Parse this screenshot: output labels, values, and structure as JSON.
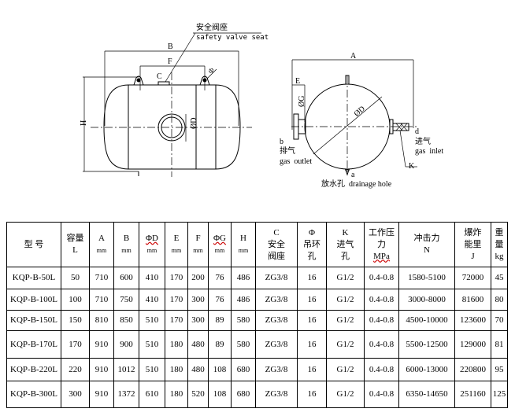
{
  "diagram": {
    "side_view": {
      "safety_valve_cn": "安全阀座",
      "safety_valve_en": "safety valve seat",
      "label_B": "B",
      "label_F": "F",
      "label_C": "C",
      "label_phi": "Φ",
      "label_H": "H",
      "label_D": "ØD"
    },
    "end_view": {
      "label_A": "A",
      "label_E": "E",
      "label_G": "ØG",
      "label_D": "ØD",
      "outlet_letter": "b",
      "outlet_cn": "排气",
      "outlet_en": "gas  outlet",
      "drain_letter": "a",
      "drain_text": "放水孔  drainage hole",
      "inlet_letter": "d",
      "inlet_cn": "进气",
      "inlet_en": "gas  inlet",
      "label_K": "K"
    }
  },
  "table": {
    "headers": [
      {
        "l1": "型  号"
      },
      {
        "l1": "容量",
        "l2": "L"
      },
      {
        "l1": "A",
        "l2": "mm"
      },
      {
        "l1": "B",
        "l2": "mm"
      },
      {
        "l1": "ΦD",
        "l2": "mm"
      },
      {
        "l1": "E",
        "l2": "mm"
      },
      {
        "l1": "F",
        "l2": "mm"
      },
      {
        "l1": "ΦG",
        "l2": "mm"
      },
      {
        "l1": "H",
        "l2": "mm"
      },
      {
        "l1": "C",
        "l2": "安全",
        "l3": "阀座"
      },
      {
        "l1": "Φ",
        "l2": "吊环",
        "l3": "孔"
      },
      {
        "l1": "K",
        "l2": "进气",
        "l3": "孔"
      },
      {
        "l1": "工作压",
        "l2": "力",
        "l3": "MPa"
      },
      {
        "l1": "冲击力",
        "l2": "N"
      },
      {
        "l1": "爆炸",
        "l2": "能里",
        "l3": "J"
      },
      {
        "l1": "重",
        "l2": "量",
        "l3": "kg"
      }
    ],
    "rows": [
      [
        "KQP-B-50L",
        "50",
        "710",
        "600",
        "410",
        "170",
        "200",
        "76",
        "486",
        "ZG3/8",
        "16",
        "G1/2",
        "0.4-0.8",
        "1580-5100",
        "72000",
        "45"
      ],
      [
        "KQP-B-100L",
        "100",
        "710",
        "750",
        "410",
        "170",
        "300",
        "76",
        "486",
        "ZG3/8",
        "16",
        "G1/2",
        "0.4-0.8",
        "3000-8000",
        "81600",
        "80"
      ],
      [
        "KQP-B-150L",
        "150",
        "810",
        "850",
        "510",
        "170",
        "300",
        "89",
        "580",
        "ZG3/8",
        "16",
        "G1/2",
        "0.4-0.8",
        "4500-10000",
        "123600",
        "70"
      ],
      [
        "KQP-B-170L",
        "170",
        "910",
        "900",
        "510",
        "180",
        "480",
        "89",
        "580",
        "ZG3/8",
        "16",
        "G1/2",
        "0.4-0.8",
        "5500-12500",
        "129000",
        "81"
      ],
      [
        "KQP-B-220L",
        "220",
        "910",
        "1012",
        "510",
        "180",
        "480",
        "108",
        "680",
        "ZG3/8",
        "16",
        "G1/2",
        "0.4-0.8",
        "6000-13000",
        "220800",
        "95"
      ],
      [
        "KQP-B-300L",
        "300",
        "910",
        "1372",
        "610",
        "180",
        "520",
        "108",
        "680",
        "ZG3/8",
        "16",
        "G1/2",
        "0.4-0.8",
        "6350-14650",
        "251160",
        "125"
      ]
    ]
  }
}
